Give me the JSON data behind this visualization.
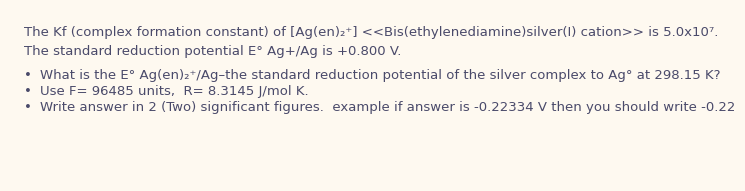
{
  "background_color": "#fef9f0",
  "text_color": "#4a4a6a",
  "font_size": 9.5,
  "line1": "The Kf (complex formation constant) of [Ag(en)₂⁺] <<Bis(ethylenediamine)silver(I) cation>> is 5.0x10⁷.",
  "line2": "The standard reduction potential E° Ag+/Ag is +0.800 V.",
  "bullet1": "What is the E° Ag(en)₂⁺/Ag–the standard reduction potential of the silver complex to Ag° at 298.15 K?",
  "bullet2": "Use F= 96485 units,  R= 8.3145 J/mol K.",
  "bullet3": "Write answer in 2 (Two) significant figures.  example if answer is -0.22334 V then you should write -0.22",
  "bullet_char": "•"
}
